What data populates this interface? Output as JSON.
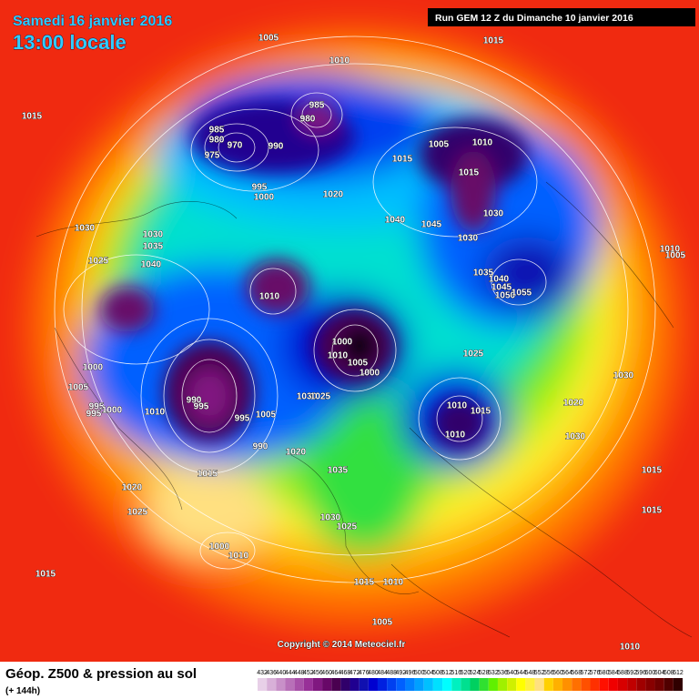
{
  "header": {
    "date": "Samedi 16 janvier 2016",
    "time": "13:00 locale",
    "run": "Run GEM 12 Z du Dimanche 10 janvier 2016"
  },
  "footer": {
    "title": "Géop. Z500 & pression au sol",
    "lead": "(+ 144h)",
    "copyright": "Copyright © 2014 Meteociel.fr"
  },
  "colorbar": {
    "labels": [
      432,
      436,
      440,
      444,
      448,
      452,
      456,
      460,
      464,
      468,
      472,
      476,
      480,
      484,
      488,
      492,
      496,
      500,
      504,
      508,
      512,
      516,
      520,
      524,
      528,
      532,
      536,
      540,
      544,
      548,
      552,
      556,
      560,
      564,
      568,
      572,
      576,
      580,
      584,
      588,
      592,
      596,
      600,
      604,
      608,
      612
    ],
    "colors": [
      "#e8d0e8",
      "#d8b0d8",
      "#c890c8",
      "#b870b8",
      "#a850a8",
      "#983098",
      "#801880",
      "#680868",
      "#4a0050",
      "#30006a",
      "#200090",
      "#1010b0",
      "#0000d0",
      "#0020e0",
      "#0040f0",
      "#0060ff",
      "#0080ff",
      "#00a0ff",
      "#00c0ff",
      "#00e0ff",
      "#00ffff",
      "#00f0c0",
      "#00e090",
      "#00d060",
      "#30e030",
      "#60f000",
      "#a0f000",
      "#d0f000",
      "#ffff00",
      "#fff040",
      "#ffe080",
      "#ffd000",
      "#ffb000",
      "#ff9000",
      "#ff7000",
      "#ff5000",
      "#ff3000",
      "#ff1000",
      "#f00000",
      "#d80000",
      "#c00000",
      "#a00000",
      "#880000",
      "#700000",
      "#500000",
      "#300000"
    ]
  },
  "isobar_labels": [
    1005,
    1015,
    1010,
    1015,
    985,
    980,
    985,
    980,
    970,
    975,
    990,
    1005,
    1010,
    1015,
    1015,
    995,
    1000,
    1020,
    1030,
    1040,
    1045,
    1030,
    1030,
    1035,
    1030,
    1025,
    1040,
    1010,
    1005,
    1035,
    1040,
    1045,
    1050,
    1055,
    1010,
    1000,
    1010,
    1005,
    1000,
    1025,
    1000,
    1030,
    1005,
    990,
    995,
    1030,
    1025,
    995,
    1000,
    995,
    1010,
    1010,
    1015,
    1020,
    995,
    1005,
    1010,
    1030,
    990,
    1020,
    1015,
    1035,
    1015,
    1020,
    1025,
    1030,
    1025,
    1015,
    1000,
    1010,
    1015,
    1015,
    1010,
    1005,
    1010
  ]
}
